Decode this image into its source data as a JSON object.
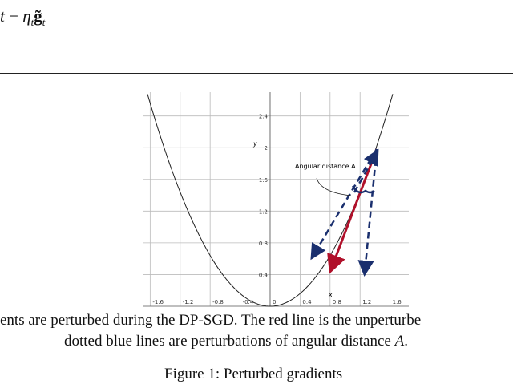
{
  "equation": {
    "lead": "t",
    "minus": "−",
    "eta": "η",
    "eta_sub": "t",
    "g": "g̃",
    "g_sub": "t"
  },
  "figure": {
    "xlim": [
      -1.7,
      1.85
    ],
    "ylim": [
      0,
      2.7
    ],
    "xticks": [
      -1.6,
      -1.2,
      -0.8,
      -0.4,
      0,
      0.4,
      0.8,
      1.2,
      1.6
    ],
    "yticks": [
      0.4,
      0.8,
      1.2,
      1.6,
      2,
      2.4
    ],
    "xlabel": "x",
    "ylabel": "y",
    "grid": true,
    "annotation": "Angular distance A"
  },
  "caption": {
    "line1": "ents are perturbed during the DP-SGD. The red line is the unperturbe",
    "line2_a": "dotted blue lines are perturbations of angular distance ",
    "line2_var": "A",
    "line2_end": ".",
    "figure_label": "Figure 1: Perturbed gradients"
  }
}
